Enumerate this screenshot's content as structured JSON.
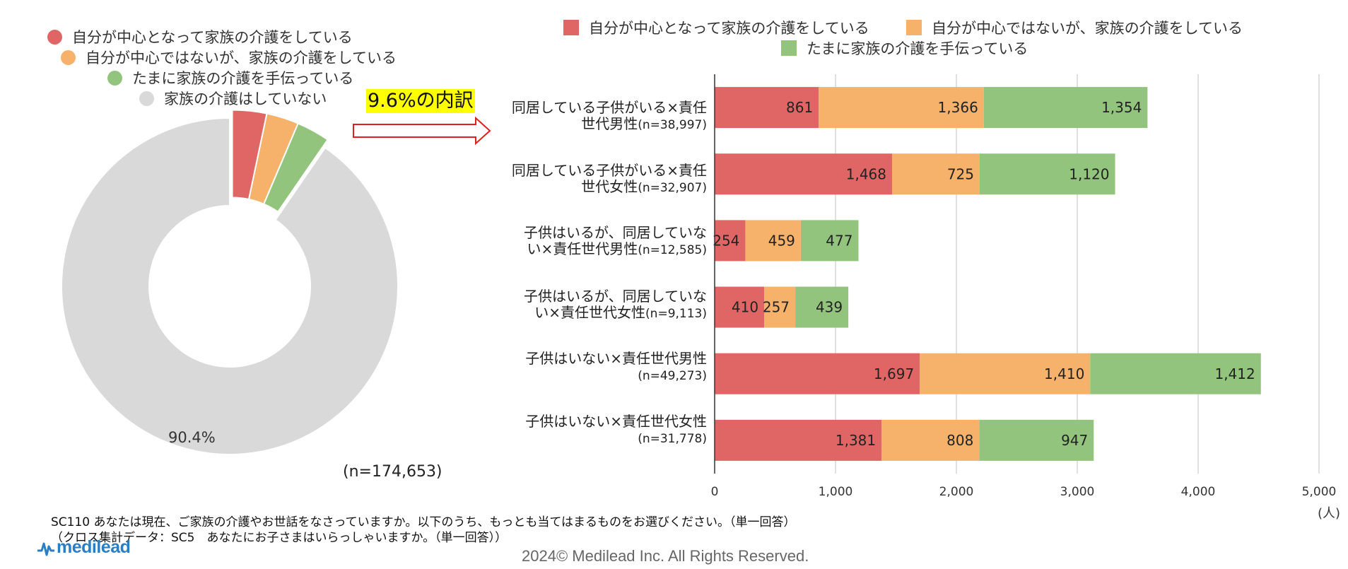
{
  "colors": {
    "primary": "#e06666",
    "secondary": "#f6b26b",
    "occasional": "#93c47d",
    "none": "#d9d9d9",
    "grid": "#cccccc",
    "highlight": "#ffff00",
    "arrow": "#e02020",
    "logo": "#2a7fc4"
  },
  "donut": {
    "legend": [
      "自分が中心となって家族の介護をしている",
      "自分が中心ではないが、家族の介護をしている",
      "たまに家族の介護を手伝っている",
      "家族の介護はしていない"
    ],
    "slice_label": "90.4%",
    "n_label": "(n=174,653)"
  },
  "callout": {
    "label": "9.6%の内訳"
  },
  "bar_legend": [
    "自分が中心となって家族の介護をしている",
    "自分が中心ではないが、家族の介護をしている",
    "たまに家族の介護を手伝っている"
  ],
  "bars": {
    "categories": [
      {
        "line1": "同居している子供がいる×責任",
        "line2": "世代男性",
        "n": "(n=38,997)"
      },
      {
        "line1": "同居している子供がいる×責任",
        "line2": "世代女性",
        "n": "(n=32,907)"
      },
      {
        "line1": "子供はいるが、同居していな",
        "line2": "い×責任世代男性",
        "n": "(n=12,585)"
      },
      {
        "line1": "子供はいるが、同居していな",
        "line2": "い×責任世代女性",
        "n": "(n=9,113)"
      },
      {
        "line1": "子供はいない×責任世代男性",
        "line2": "",
        "n": "(n=49,273)"
      },
      {
        "line1": "子供はいない×責任世代女性",
        "line2": "",
        "n": "(n=31,778)"
      }
    ],
    "unit": "(人)"
  },
  "chart_data": [
    {
      "type": "pie",
      "title": "",
      "labels": [
        "自分が中心となって家族の介護をしている",
        "自分が中心ではないが、家族の介護をしている",
        "たまに家族の介護を手伝っている",
        "家族の介護はしていない"
      ],
      "values": [
        3.3,
        3.1,
        3.2,
        90.4
      ],
      "data_labels": [
        "",
        "",
        "",
        "90.4%"
      ],
      "donut": true
    },
    {
      "type": "bar",
      "orientation": "horizontal",
      "stacked": true,
      "categories": [
        "同居している子供がいる×責任世代男性(n=38,997)",
        "同居している子供がいる×責任世代女性(n=32,907)",
        "子供はいるが、同居していない×責任世代男性(n=12,585)",
        "子供はいるが、同居していない×責任世代女性(n=9,113)",
        "子供はいない×責任世代男性(n=49,273)",
        "子供はいない×責任世代女性(n=31,778)"
      ],
      "series": [
        {
          "name": "自分が中心となって家族の介護をしている",
          "values": [
            861,
            1468,
            254,
            410,
            1697,
            1381
          ],
          "labels": [
            "861",
            "1,468",
            "254",
            "410",
            "1,697",
            "1,381"
          ]
        },
        {
          "name": "自分が中心ではないが、家族の介護をしている",
          "values": [
            1366,
            725,
            459,
            257,
            1410,
            808
          ],
          "labels": [
            "1,366",
            "725",
            "459",
            "257",
            "1,410",
            "808"
          ]
        },
        {
          "name": "たまに家族の介護を手伝っている",
          "values": [
            1354,
            1120,
            477,
            439,
            1412,
            947
          ],
          "labels": [
            "1,354",
            "1,120",
            "477",
            "439",
            "1,412",
            "947"
          ]
        }
      ],
      "xlim": [
        0,
        5000
      ],
      "xticks": [
        0,
        1000,
        2000,
        3000,
        4000,
        5000
      ],
      "xtick_labels": [
        "0",
        "1,000",
        "2,000",
        "3,000",
        "4,000",
        "5,000"
      ],
      "xlabel": "(人)",
      "grid": true,
      "legend": "top"
    }
  ],
  "footer": {
    "question": "SC110 あなたは現在、ご家族の介護やお世話をなさっていますか。以下のうち、もっとも当てはまるものをお選びください。（単一回答）",
    "cross": "（クロス集計データ：SC5　あなたにお子さまはいらっしゃいますか。（単一回答））",
    "copyright": "2024© Medilead Inc. All Rights Reserved.",
    "logo_text": "medilead"
  }
}
